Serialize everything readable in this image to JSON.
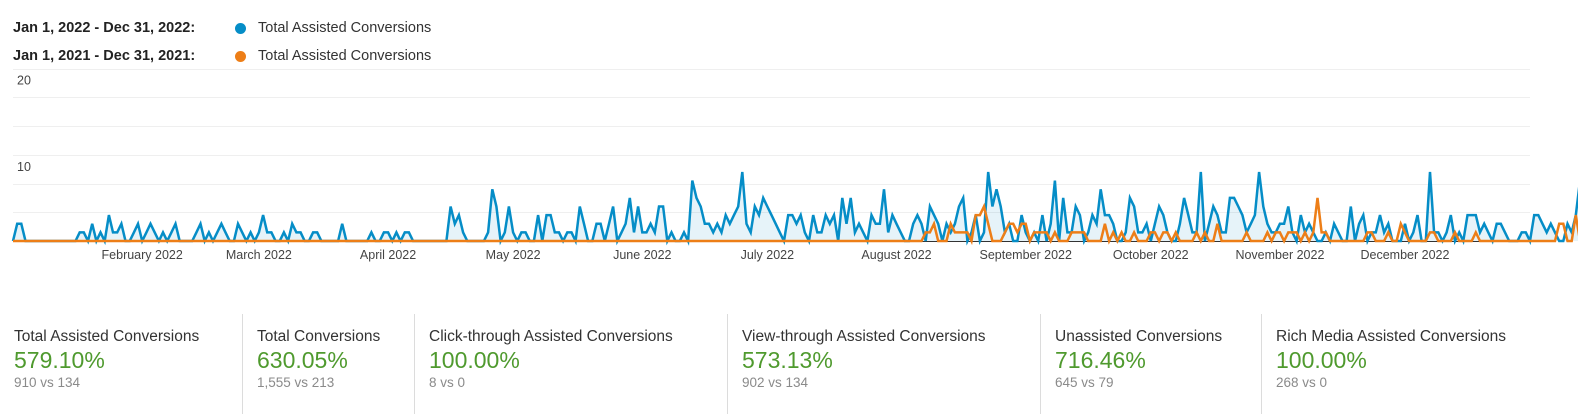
{
  "legend": [
    {
      "range": "Jan 1, 2022 - Dec 31, 2022:",
      "label": "Total Assisted Conversions",
      "color": "#058dc7"
    },
    {
      "range": "Jan 1, 2021 - Dec 31, 2021:",
      "label": "Total Assisted Conversions",
      "color": "#ed7e17"
    }
  ],
  "chart_data": {
    "type": "line",
    "title": "",
    "xlabel": "",
    "ylabel": "",
    "ylim": [
      0,
      20
    ],
    "y_ticks": [
      "10",
      "20"
    ],
    "x_tick_labels": [
      "February 2022",
      "March 2022",
      "April 2022",
      "May 2022",
      "June 2022",
      "July 2022",
      "August 2022",
      "September 2022",
      "October 2022",
      "November 2022",
      "December 2022"
    ],
    "x_tick_days": [
      31,
      59,
      90,
      120,
      151,
      181,
      212,
      243,
      273,
      304,
      334
    ],
    "x_domain_days": 365,
    "grid": true,
    "legend_position": "top-left",
    "series": [
      {
        "name": "Jan 1, 2022 - Dec 31, 2022: Total Assisted Conversions",
        "color": "#058dc7",
        "area": true,
        "values": [
          0,
          2,
          2,
          0,
          0,
          0,
          0,
          0,
          0,
          0,
          0,
          0,
          0,
          0,
          0,
          0,
          1,
          1,
          0,
          2,
          0,
          1,
          0,
          3,
          1,
          1,
          2,
          0,
          0,
          1,
          2,
          0,
          1,
          2,
          1,
          0,
          1,
          0,
          1,
          2,
          0,
          0,
          0,
          0,
          1,
          2,
          0,
          1,
          0,
          1,
          2,
          1,
          0,
          0,
          2,
          1,
          0,
          1,
          0,
          1,
          3,
          1,
          1,
          0,
          0,
          1,
          0,
          2,
          1,
          1,
          0,
          0,
          1,
          1,
          0,
          0,
          0,
          0,
          0,
          2,
          0,
          0,
          0,
          0,
          0,
          0,
          1,
          0,
          0,
          1,
          1,
          0,
          1,
          0,
          1,
          1,
          0,
          0,
          0,
          0,
          0,
          0,
          0,
          0,
          0,
          4,
          2,
          3,
          1,
          0,
          0,
          0,
          0,
          0,
          1,
          6,
          4,
          0,
          1,
          4,
          1,
          0,
          1,
          1,
          0,
          0,
          3,
          0,
          3,
          3,
          1,
          1,
          0,
          1,
          1,
          0,
          4,
          2,
          0,
          0,
          2,
          2,
          0,
          2,
          4,
          0,
          1,
          2,
          5,
          1,
          4,
          1,
          1,
          2,
          1,
          4,
          4,
          0,
          1,
          0,
          0,
          1,
          0,
          7,
          5,
          4,
          2,
          2,
          1,
          2,
          1,
          3,
          2,
          3,
          4,
          8,
          2,
          1,
          4,
          3,
          5,
          4,
          3,
          2,
          1,
          0,
          3,
          3,
          2,
          3,
          1,
          0,
          3,
          1,
          1,
          3,
          2,
          3,
          0,
          5,
          2,
          5,
          1,
          2,
          1,
          0,
          3,
          2,
          2,
          6,
          1,
          3,
          2,
          1,
          0,
          0,
          2,
          3,
          2,
          0,
          4,
          3,
          2,
          0,
          2,
          1,
          2,
          4,
          5,
          0,
          1,
          3,
          0,
          1,
          8,
          4,
          6,
          4,
          1,
          2,
          0,
          0,
          3,
          1,
          0,
          1,
          0,
          3,
          0,
          2,
          7,
          0,
          5,
          1,
          1,
          4,
          3,
          0,
          1,
          3,
          2,
          6,
          3,
          3,
          2,
          0,
          0,
          1,
          5,
          4,
          1,
          1,
          2,
          0,
          2,
          4,
          3,
          1,
          0,
          0,
          2,
          5,
          3,
          1,
          1,
          8,
          0,
          2,
          4,
          3,
          1,
          1,
          5,
          5,
          4,
          3,
          1,
          2,
          3,
          8,
          4,
          2,
          1,
          1,
          2,
          2,
          4,
          1,
          0,
          3,
          1,
          2,
          1,
          0,
          0,
          1,
          0,
          2,
          1,
          0,
          0,
          4,
          0,
          2,
          3,
          0,
          1,
          1,
          3,
          1,
          2,
          0,
          0,
          0,
          2,
          0,
          1,
          3,
          0,
          0,
          8,
          1,
          1,
          0,
          1,
          3,
          0,
          1,
          0,
          3,
          3,
          3,
          1,
          2,
          1,
          0,
          2,
          2,
          1,
          0,
          0,
          0,
          1,
          1,
          0,
          3,
          3,
          2,
          1,
          2,
          1,
          0,
          0,
          2,
          1,
          3,
          7,
          3,
          1,
          3,
          16,
          6,
          4,
          6,
          10,
          3,
          7,
          6,
          4,
          3,
          2,
          5,
          3,
          5,
          4,
          1,
          3,
          2,
          5,
          9,
          13,
          1,
          0,
          8,
          2,
          3,
          2,
          0,
          0,
          0,
          0,
          0,
          0,
          1,
          0,
          0,
          0,
          5,
          0
        ],
        "note": "Values approximated from the rendered line"
      },
      {
        "name": "Jan 1, 2021 - Dec 31, 2021: Total Assisted Conversions",
        "color": "#ed7e17",
        "area": false,
        "values": [
          0,
          0,
          0,
          0,
          0,
          0,
          0,
          0,
          0,
          0,
          0,
          0,
          0,
          0,
          0,
          0,
          0,
          0,
          0,
          0,
          0,
          0,
          0,
          0,
          0,
          0,
          0,
          0,
          0,
          0,
          0,
          0,
          0,
          0,
          0,
          0,
          0,
          0,
          0,
          0,
          0,
          0,
          0,
          0,
          0,
          0,
          0,
          0,
          0,
          0,
          0,
          0,
          0,
          0,
          0,
          0,
          0,
          0,
          0,
          0,
          0,
          0,
          0,
          0,
          0,
          0,
          0,
          0,
          0,
          0,
          0,
          0,
          0,
          0,
          0,
          0,
          0,
          0,
          0,
          0,
          0,
          0,
          0,
          0,
          0,
          0,
          0,
          0,
          0,
          0,
          0,
          0,
          0,
          0,
          0,
          0,
          0,
          0,
          0,
          0,
          0,
          0,
          0,
          0,
          0,
          0,
          0,
          0,
          0,
          0,
          0,
          0,
          0,
          0,
          0,
          0,
          0,
          0,
          0,
          0,
          0,
          0,
          0,
          0,
          0,
          0,
          0,
          0,
          0,
          0,
          0,
          0,
          0,
          0,
          0,
          0,
          0,
          0,
          0,
          0,
          0,
          0,
          0,
          0,
          0,
          0,
          0,
          0,
          0,
          0,
          0,
          0,
          0,
          0,
          0,
          0,
          0,
          0,
          0,
          0,
          0,
          0,
          0,
          0,
          0,
          0,
          0,
          0,
          0,
          0,
          0,
          0,
          0,
          0,
          0,
          0,
          0,
          0,
          0,
          0,
          0,
          0,
          0,
          0,
          0,
          0,
          0,
          0,
          0,
          0,
          0,
          0,
          0,
          0,
          0,
          0,
          0,
          0,
          0,
          0,
          0,
          0,
          0,
          0,
          0,
          0,
          0,
          0,
          0,
          0,
          0,
          0,
          0,
          0,
          0,
          0,
          0,
          0,
          0,
          1,
          1,
          2,
          0,
          0,
          0,
          2,
          1,
          1,
          1,
          1,
          0,
          3,
          3,
          4,
          2,
          0,
          0,
          0,
          1,
          2,
          2,
          1,
          2,
          2,
          0,
          1,
          1,
          1,
          1,
          0,
          1,
          0,
          0,
          0,
          1,
          1,
          1,
          1,
          0,
          0,
          0,
          0,
          2,
          0,
          1,
          0,
          1,
          0,
          0,
          1,
          0,
          0,
          0,
          1,
          1,
          0,
          1,
          1,
          0,
          1,
          0,
          0,
          0,
          0,
          1,
          0,
          1,
          0,
          0,
          2,
          0,
          0,
          0,
          0,
          0,
          0,
          1,
          0,
          0,
          0,
          0,
          1,
          0,
          1,
          1,
          0,
          1,
          1,
          1,
          0,
          1,
          0,
          1,
          5,
          1,
          1,
          0,
          0,
          0,
          0,
          0,
          0,
          0,
          0,
          0,
          1,
          1,
          0,
          0,
          0,
          1,
          0,
          0,
          2,
          1,
          0,
          0,
          0,
          0,
          0,
          1,
          1,
          0,
          0,
          0,
          0,
          1,
          0,
          0,
          0,
          0,
          1,
          0,
          0,
          0,
          0,
          0,
          0,
          0,
          0,
          0,
          0,
          0,
          0,
          0,
          0,
          0,
          0,
          0,
          0,
          0,
          2,
          2,
          0,
          0,
          3,
          0,
          1,
          2,
          2,
          0,
          0,
          1,
          0,
          0,
          2,
          2,
          0,
          1,
          3,
          0,
          1,
          2,
          2,
          2,
          2,
          0,
          1,
          2,
          1,
          0,
          1,
          0,
          0,
          0,
          0,
          0,
          1,
          1,
          1
        ],
        "note": "Values approximated from the rendered line"
      }
    ]
  },
  "metrics": [
    {
      "title": "Total Assisted Conversions",
      "change": "579.10%",
      "comparison": "910 vs 134"
    },
    {
      "title": "Total Conversions",
      "change": "630.05%",
      "comparison": "1,555 vs 213"
    },
    {
      "title": "Click-through Assisted Conversions",
      "change": "100.00%",
      "comparison": "8 vs 0"
    },
    {
      "title": "View-through Assisted Conversions",
      "change": "573.13%",
      "comparison": "902 vs 134"
    },
    {
      "title": "Unassisted Conversions",
      "change": "716.46%",
      "comparison": "645 vs 79"
    },
    {
      "title": "Rich Media Assisted Conversions",
      "change": "100.00%",
      "comparison": "268 vs 0"
    }
  ],
  "colors": {
    "positive": "#4f9a2e",
    "series_2022": "#058dc7",
    "series_2021": "#ed7e17"
  }
}
